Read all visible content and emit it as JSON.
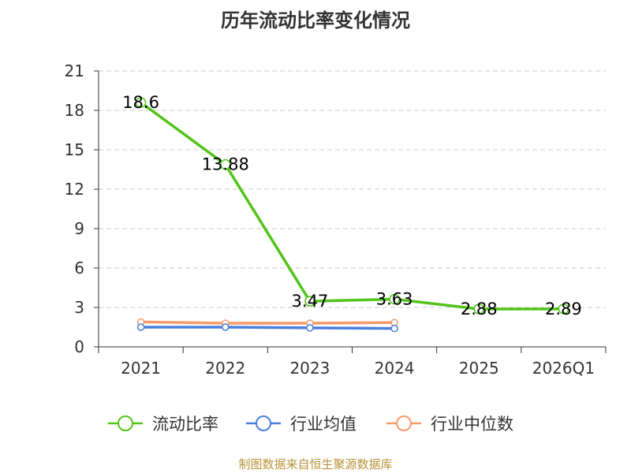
{
  "title": "历年流动比率变化情况",
  "source": "制图数据来自恒生聚源数据库",
  "colors": {
    "current_ratio": "#52c41a",
    "industry_avg": "#4a7fe0",
    "industry_median": "#f59a6a",
    "grid": "#cccccc",
    "axis": "#333333"
  },
  "chart_data": {
    "type": "line",
    "title": "历年流动比率变化情况",
    "categories": [
      "2021",
      "2022",
      "2023",
      "2024",
      "2025",
      "2026Q1"
    ],
    "ylim": [
      0,
      21
    ],
    "yticks": [
      0,
      3,
      6,
      9,
      12,
      15,
      18,
      21
    ],
    "grid": true,
    "legend_position": "bottom",
    "series": [
      {
        "name": "流动比率",
        "key": "current_ratio",
        "values": [
          18.6,
          13.88,
          3.47,
          3.63,
          2.88,
          2.89
        ],
        "labels": [
          "18.6",
          "13.88",
          "3.47",
          "3.63",
          "2.88",
          "2.89"
        ]
      },
      {
        "name": "行业均值",
        "key": "industry_avg",
        "values": [
          1.5,
          1.5,
          1.45,
          1.4,
          null,
          null
        ]
      },
      {
        "name": "行业中位数",
        "key": "industry_median",
        "values": [
          1.9,
          1.8,
          1.8,
          1.85,
          null,
          null
        ]
      }
    ]
  }
}
